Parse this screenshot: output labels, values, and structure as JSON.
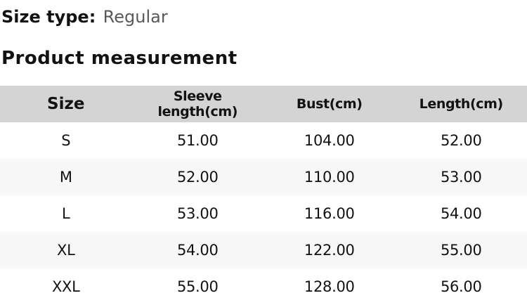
{
  "page": {
    "size_type_label": "Size type:",
    "size_type_value": "Regular",
    "section_title": "Product measurement"
  },
  "table": {
    "columns": [
      "Size",
      "Sleeve length(cm)",
      "Bust(cm)",
      "Length(cm)"
    ],
    "rows": [
      [
        "S",
        "51.00",
        "104.00",
        "52.00"
      ],
      [
        "M",
        "52.00",
        "110.00",
        "53.00"
      ],
      [
        "L",
        "53.00",
        "116.00",
        "54.00"
      ],
      [
        "XL",
        "54.00",
        "122.00",
        "55.00"
      ],
      [
        "XXL",
        "55.00",
        "128.00",
        "56.00"
      ]
    ]
  },
  "colors": {
    "header_bg": "#d4d4d4",
    "row_alt_bg": "#f7f7f7",
    "text": "#121212",
    "muted_text": "#595959"
  }
}
